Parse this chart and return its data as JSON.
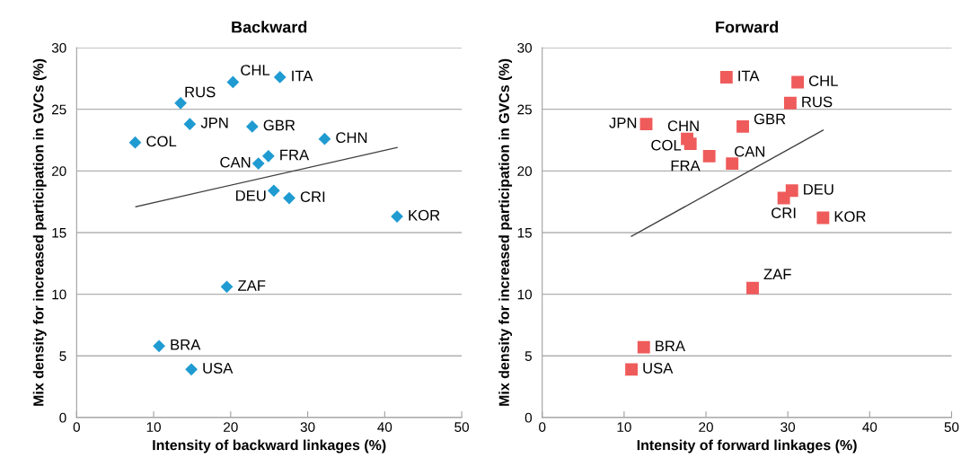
{
  "chart_data": [
    {
      "type": "scatter",
      "title": "Backward",
      "xlabel": "Intensity of backward linkages (%)",
      "ylabel": "Mix density for increased participation in GVCs (%)",
      "xlim": [
        0,
        50
      ],
      "xticks": [
        0,
        10,
        20,
        30,
        40,
        50
      ],
      "ylim": [
        0,
        30
      ],
      "yticks": [
        0,
        5,
        10,
        15,
        20,
        25,
        30
      ],
      "grid": "y",
      "legend": false,
      "series": [
        {
          "marker": "diamond",
          "color": "#1f9bd1",
          "x": [
            20.3,
            26.4,
            13.5,
            14.7,
            22.8,
            7.6,
            32.2,
            24.9,
            23.6,
            25.6,
            27.6,
            41.6,
            19.5,
            10.7,
            14.9
          ],
          "values": [
            27.2,
            27.6,
            25.5,
            23.8,
            23.6,
            22.3,
            22.6,
            21.2,
            20.6,
            18.4,
            17.8,
            16.3,
            10.6,
            5.8,
            3.9
          ]
        },
        {
          "type": "line",
          "marker": "none",
          "color": "#404040",
          "x": [
            7.7,
            41.6
          ],
          "values": [
            17.1,
            21.9
          ]
        }
      ],
      "annotations": [
        {
          "text": "CHL",
          "x": 20.3,
          "y": 27.2
        },
        {
          "text": "ITA",
          "x": 26.4,
          "y": 27.6
        },
        {
          "text": "RUS",
          "x": 13.5,
          "y": 25.5
        },
        {
          "text": "JPN",
          "x": 14.7,
          "y": 23.8
        },
        {
          "text": "GBR",
          "x": 22.8,
          "y": 23.6
        },
        {
          "text": "COL",
          "x": 7.6,
          "y": 22.3
        },
        {
          "text": "CHN",
          "x": 32.2,
          "y": 22.6
        },
        {
          "text": "FRA",
          "x": 24.9,
          "y": 21.2
        },
        {
          "text": "CAN",
          "x": 23.6,
          "y": 20.6
        },
        {
          "text": "DEU",
          "x": 25.6,
          "y": 18.4
        },
        {
          "text": "CRI",
          "x": 27.6,
          "y": 17.8
        },
        {
          "text": "KOR",
          "x": 41.6,
          "y": 16.3
        },
        {
          "text": "ZAF",
          "x": 19.5,
          "y": 10.6
        },
        {
          "text": "BRA",
          "x": 10.7,
          "y": 5.8
        },
        {
          "text": "USA",
          "x": 14.9,
          "y": 3.9
        }
      ]
    },
    {
      "type": "scatter",
      "title": "Forward",
      "xlabel": "Intensity of forward linkages (%)",
      "ylabel": "Mix density for increased participation in GVCs (%)",
      "xlim": [
        0,
        50
      ],
      "xticks": [
        0,
        10,
        20,
        30,
        40,
        50
      ],
      "ylim": [
        0,
        30
      ],
      "yticks": [
        0,
        5,
        10,
        15,
        20,
        25,
        30
      ],
      "grid": "y",
      "legend": false,
      "series": [
        {
          "marker": "square",
          "color": "#ef5b5b",
          "x": [
            31.2,
            22.5,
            30.3,
            12.7,
            24.5,
            18.1,
            17.7,
            20.4,
            23.2,
            30.5,
            29.5,
            34.3,
            25.7,
            12.4,
            10.9
          ],
          "values": [
            27.2,
            27.6,
            25.5,
            23.8,
            23.6,
            22.2,
            22.6,
            21.2,
            20.6,
            18.4,
            17.8,
            16.2,
            10.5,
            5.7,
            3.9
          ]
        },
        {
          "type": "line",
          "marker": "none",
          "color": "#404040",
          "x": [
            10.9,
            34.3
          ],
          "values": [
            14.7,
            23.3
          ]
        }
      ],
      "annotations": [
        {
          "text": "CHL",
          "x": 31.2,
          "y": 27.2
        },
        {
          "text": "ITA",
          "x": 22.5,
          "y": 27.6
        },
        {
          "text": "RUS",
          "x": 30.3,
          "y": 25.5
        },
        {
          "text": "JPN",
          "x": 12.7,
          "y": 23.8
        },
        {
          "text": "GBR",
          "x": 24.5,
          "y": 23.6
        },
        {
          "text": "COL",
          "x": 18.1,
          "y": 22.2
        },
        {
          "text": "CHN",
          "x": 17.7,
          "y": 22.6
        },
        {
          "text": "FRA",
          "x": 20.4,
          "y": 21.2
        },
        {
          "text": "CAN",
          "x": 23.2,
          "y": 20.6
        },
        {
          "text": "DEU",
          "x": 30.5,
          "y": 18.4
        },
        {
          "text": "CRI",
          "x": 29.5,
          "y": 17.8
        },
        {
          "text": "KOR",
          "x": 34.3,
          "y": 16.2
        },
        {
          "text": "ZAF",
          "x": 25.7,
          "y": 10.5
        },
        {
          "text": "BRA",
          "x": 12.4,
          "y": 5.7
        },
        {
          "text": "USA",
          "x": 10.9,
          "y": 3.9
        }
      ]
    }
  ]
}
